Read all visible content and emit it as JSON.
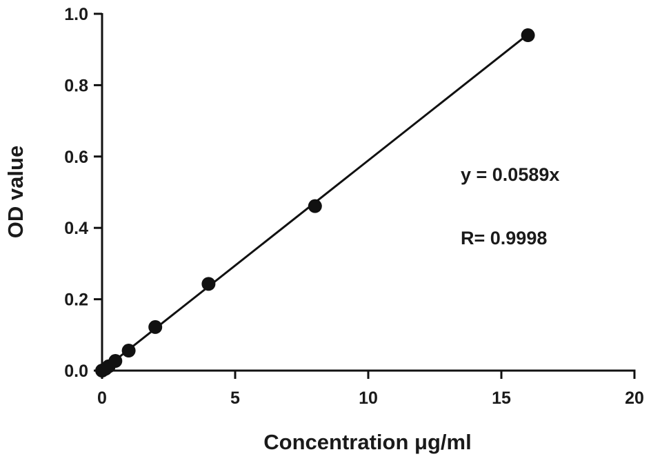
{
  "chart_data": {
    "type": "scatter",
    "title": "",
    "xlabel": "Concentration μg/ml",
    "ylabel": "OD value",
    "xlim": [
      0,
      20
    ],
    "ylim": [
      0,
      1.0
    ],
    "x_ticks": [
      0,
      5,
      10,
      15,
      20
    ],
    "x_tick_labels": [
      "0",
      "5",
      "10",
      "15",
      "20"
    ],
    "y_ticks": [
      0,
      0.2,
      0.4,
      0.6,
      0.8,
      1.0
    ],
    "y_tick_labels": [
      "0.0",
      "0.2",
      "0.4",
      "0.6",
      "0.8",
      "1.0"
    ],
    "grid": false,
    "legend": "none",
    "series": [
      {
        "x": [
          0,
          0.125,
          0.25,
          0.5,
          1,
          2,
          4,
          8,
          16
        ],
        "y": [
          0.0,
          0.005,
          0.012,
          0.027,
          0.056,
          0.122,
          0.243,
          0.461,
          0.94
        ]
      }
    ],
    "fit_line": {
      "slope": 0.0589,
      "x_range": [
        0,
        16
      ]
    },
    "annotations": {
      "equation": "y = 0.0589x",
      "r_value": "R= 0.9998"
    }
  }
}
